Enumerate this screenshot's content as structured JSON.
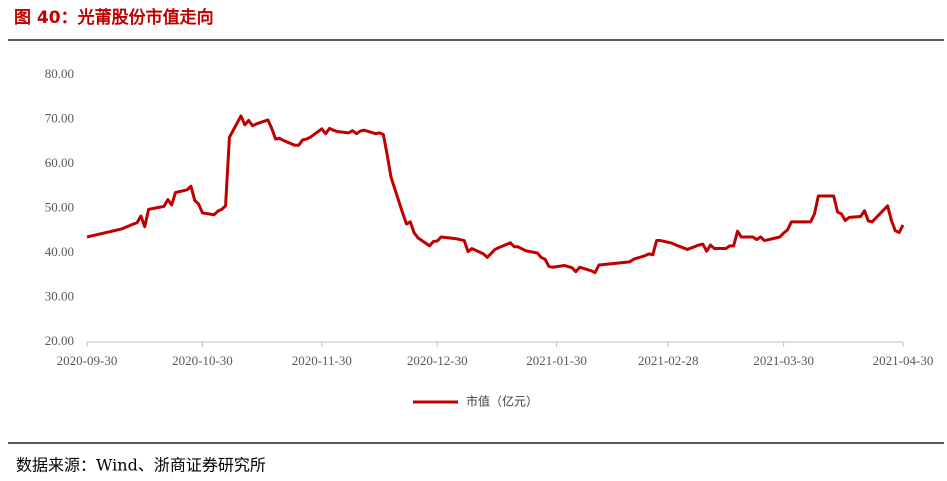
{
  "chart_data": {
    "type": "line",
    "title": "图 40：光莆股份市值走向",
    "source": "数据来源：Wind、浙商证券研究所",
    "legend": "bottom",
    "grid": false,
    "x": [
      "2020-09-30",
      "2020-10-09",
      "2020-10-12",
      "2020-10-13",
      "2020-10-14",
      "2020-10-15",
      "2020-10-16",
      "2020-10-19",
      "2020-10-20",
      "2020-10-21",
      "2020-10-22",
      "2020-10-23",
      "2020-10-26",
      "2020-10-27",
      "2020-10-28",
      "2020-10-29",
      "2020-10-30",
      "2020-11-02",
      "2020-11-03",
      "2020-11-04",
      "2020-11-05",
      "2020-11-06",
      "2020-11-09",
      "2020-11-10",
      "2020-11-11",
      "2020-11-12",
      "2020-11-13",
      "2020-11-16",
      "2020-11-17",
      "2020-11-18",
      "2020-11-19",
      "2020-11-20",
      "2020-11-23",
      "2020-11-24",
      "2020-11-25",
      "2020-11-26",
      "2020-11-27",
      "2020-11-30",
      "2020-12-01",
      "2020-12-02",
      "2020-12-03",
      "2020-12-04",
      "2020-12-07",
      "2020-12-08",
      "2020-12-09",
      "2020-12-10",
      "2020-12-11",
      "2020-12-14",
      "2020-12-15",
      "2020-12-16",
      "2020-12-17",
      "2020-12-18",
      "2020-12-21",
      "2020-12-22",
      "2020-12-23",
      "2020-12-24",
      "2020-12-25",
      "2020-12-28",
      "2020-12-29",
      "2020-12-30",
      "2020-12-31",
      "2021-01-04",
      "2021-01-05",
      "2021-01-06",
      "2021-01-07",
      "2021-01-08",
      "2021-01-11",
      "2021-01-12",
      "2021-01-14",
      "2021-01-15",
      "2021-01-18",
      "2021-01-19",
      "2021-01-20",
      "2021-01-22",
      "2021-01-25",
      "2021-01-26",
      "2021-01-27",
      "2021-01-28",
      "2021-01-29",
      "2021-02-01",
      "2021-02-03",
      "2021-02-04",
      "2021-02-05",
      "2021-02-08",
      "2021-02-09",
      "2021-02-10",
      "2021-02-18",
      "2021-02-19",
      "2021-02-22",
      "2021-02-23",
      "2021-02-24",
      "2021-02-25",
      "2021-02-26",
      "2021-03-01",
      "2021-03-02",
      "2021-03-05",
      "2021-03-08",
      "2021-03-09",
      "2021-03-10",
      "2021-03-11",
      "2021-03-12",
      "2021-03-15",
      "2021-03-16",
      "2021-03-17",
      "2021-03-18",
      "2021-03-19",
      "2021-03-22",
      "2021-03-23",
      "2021-03-24",
      "2021-03-25",
      "2021-03-26",
      "2021-03-29",
      "2021-03-30",
      "2021-03-31",
      "2021-04-01",
      "2021-04-06",
      "2021-04-07",
      "2021-04-08",
      "2021-04-12",
      "2021-04-13",
      "2021-04-14",
      "2021-04-15",
      "2021-04-16",
      "2021-04-19",
      "2021-04-20",
      "2021-04-21",
      "2021-04-22",
      "2021-04-26",
      "2021-04-27",
      "2021-04-28",
      "2021-04-29",
      "2021-04-30"
    ],
    "series": [
      {
        "name": "市值（亿元）",
        "color": "#c00000",
        "values": [
          43.6,
          45.4,
          46.5,
          46.8,
          48.3,
          45.9,
          49.8,
          50.3,
          50.5,
          52.0,
          50.8,
          53.6,
          54.2,
          55.0,
          51.8,
          51.0,
          49.0,
          48.6,
          49.4,
          49.8,
          50.6,
          66.0,
          70.8,
          68.8,
          69.8,
          68.6,
          69.0,
          69.9,
          68.0,
          65.6,
          65.8,
          65.3,
          64.2,
          64.2,
          65.4,
          65.6,
          66.0,
          67.9,
          66.8,
          68.0,
          67.6,
          67.3,
          67.0,
          67.5,
          66.8,
          67.4,
          67.6,
          66.8,
          67.0,
          66.6,
          62.0,
          57.0,
          49.0,
          46.5,
          47.0,
          44.5,
          43.4,
          41.6,
          42.6,
          42.7,
          43.6,
          43.2,
          43.0,
          42.8,
          40.3,
          41.0,
          39.8,
          39.0,
          40.8,
          41.2,
          42.3,
          41.4,
          41.4,
          40.5,
          40.0,
          39.0,
          38.6,
          37.0,
          36.8,
          37.2,
          36.7,
          35.8,
          36.8,
          36.0,
          35.6,
          37.3,
          38.0,
          38.6,
          39.4,
          39.8,
          39.6,
          42.8,
          42.8,
          42.2,
          41.8,
          40.8,
          41.8,
          42.0,
          40.4,
          41.8,
          41.0,
          41.0,
          41.6,
          41.6,
          44.9,
          43.6,
          43.6,
          43.0,
          43.6,
          42.8,
          43.0,
          43.6,
          44.5,
          45.2,
          47.0,
          47.0,
          48.8,
          52.8,
          52.8,
          49.2,
          48.8,
          47.3,
          48.0,
          48.2,
          49.5,
          47.2,
          47.0,
          50.6,
          47.3,
          45.0,
          44.6,
          46.3
        ]
      }
    ],
    "xlim": [
      "2020-09-30",
      "2021-04-30"
    ],
    "xticks": [
      "2020-09-30",
      "2020-10-30",
      "2020-11-30",
      "2020-12-30",
      "2021-01-30",
      "2021-02-28",
      "2021-03-30",
      "2021-04-30"
    ],
    "ylim": [
      20,
      80
    ],
    "yticks": [
      {
        "value": 20,
        "label": "20.00"
      },
      {
        "value": 30,
        "label": "30.00"
      },
      {
        "value": 40,
        "label": "40.00"
      },
      {
        "value": 50,
        "label": "50.00"
      },
      {
        "value": 60,
        "label": "60.00"
      },
      {
        "value": 70,
        "label": "70.00"
      },
      {
        "value": 80,
        "label": "80.00"
      }
    ]
  }
}
